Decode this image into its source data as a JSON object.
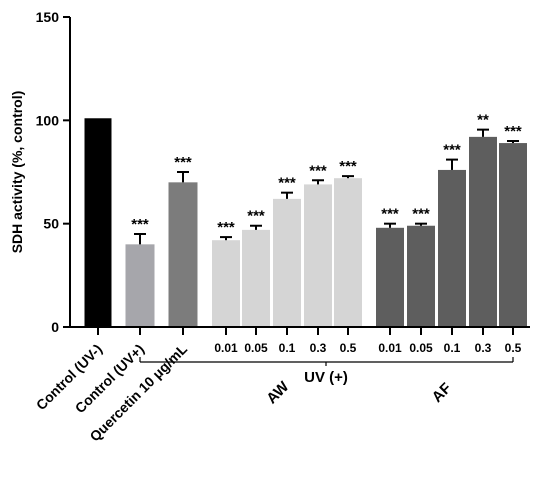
{
  "chart_data": {
    "type": "bar",
    "ylabel": "SDH activity (%, control)",
    "ylim": [
      0,
      150
    ],
    "yticks": [
      "0",
      "50",
      "100",
      "150"
    ],
    "ytick_values": [
      0,
      50,
      100,
      150
    ],
    "bars": [
      {
        "label": "Control (UV-)",
        "value": 101,
        "error": 0,
        "sig": "",
        "color": "#000000"
      },
      {
        "label": "Control (UV+)",
        "value": 40,
        "error": 5,
        "sig": "***",
        "color": "#a6a6ab"
      },
      {
        "label": "Quercetin 10 μg/mL",
        "value": 70,
        "error": 5,
        "sig": "***",
        "color": "#7c7c7c"
      },
      {
        "label": "0.01",
        "value": 42,
        "error": 1.5,
        "sig": "***",
        "color": "#d5d5d5"
      },
      {
        "label": "0.05",
        "value": 47,
        "error": 2,
        "sig": "***",
        "color": "#d5d5d5"
      },
      {
        "label": "0.1",
        "value": 62,
        "error": 3,
        "sig": "***",
        "color": "#d5d5d5"
      },
      {
        "label": "0.3",
        "value": 69,
        "error": 2,
        "sig": "***",
        "color": "#d5d5d5"
      },
      {
        "label": "0.5",
        "value": 72,
        "error": 1,
        "sig": "***",
        "color": "#d5d5d5"
      },
      {
        "label": "0.01",
        "value": 48,
        "error": 2,
        "sig": "***",
        "color": "#5e5e5e"
      },
      {
        "label": "0.05",
        "value": 49,
        "error": 1,
        "sig": "***",
        "color": "#5e5e5e"
      },
      {
        "label": "0.1",
        "value": 76,
        "error": 5,
        "sig": "***",
        "color": "#5e5e5e"
      },
      {
        "label": "0.3",
        "value": 92,
        "error": 3.5,
        "sig": "**",
        "color": "#5e5e5e"
      },
      {
        "label": "0.5",
        "value": 89,
        "error": 1,
        "sig": "***",
        "color": "#5e5e5e"
      }
    ],
    "group_labels": {
      "uv": "UV (+)",
      "aw": "AW",
      "af": "AF"
    },
    "grid": false,
    "legend": "none"
  }
}
